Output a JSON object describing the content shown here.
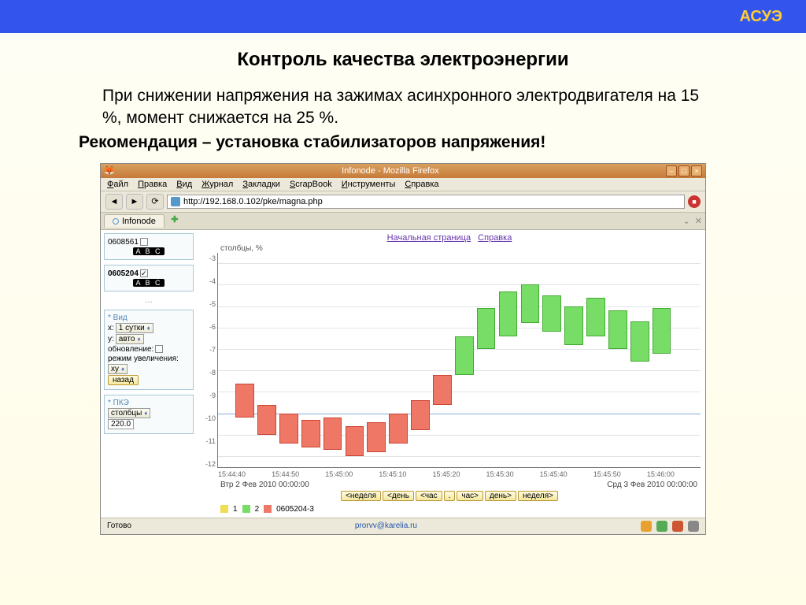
{
  "header": {
    "brand": "АСУЭ"
  },
  "page": {
    "title": "Контроль качества электроэнергии",
    "paragraph": "При снижении напряжения на зажимах асинхронного электродвигателя на 15 %, момент снижается на 25 %.",
    "recommendation": "Рекомендация – установка стабилизаторов напряжения!"
  },
  "browser": {
    "window_title": "Infonode - Mozilla Firefox",
    "menu": [
      "Файл",
      "Правка",
      "Вид",
      "Журнал",
      "Закладки",
      "ScrapBook",
      "Инструменты",
      "Справка"
    ],
    "url": "http://192.168.0.102/pke/magna.php",
    "tab_label": "Infonode",
    "top_links": [
      "Начальная страница",
      "Справка"
    ],
    "status": "Готово",
    "email": "prorvv@karelia.ru"
  },
  "sidebar": {
    "sensors": [
      {
        "id": "0608561",
        "checked": false
      },
      {
        "id": "0605204",
        "checked": true
      }
    ],
    "abc_label": "A B C",
    "view": {
      "title": "* Вид",
      "x_label": "x:",
      "x_value": "1 сутки",
      "y_label": "y:",
      "y_value": "авто",
      "update_label": "обновление:",
      "zoom_label": "режим увеличения:",
      "zoom_value": "xy",
      "back_label": "назад"
    },
    "pke": {
      "title": "* ПКЭ",
      "mode": "столбцы",
      "value": "220.0"
    }
  },
  "chart": {
    "y_title": "столбцы, %",
    "ylim": [
      -12.5,
      -2.5
    ],
    "ytick_step": 1,
    "y_ticks": [
      "-3",
      "-4",
      "-5",
      "-6",
      "-7",
      "-8",
      "-9",
      "-10",
      "-11",
      "-12"
    ],
    "threshold": -10,
    "grid_color": "#e0e4e8",
    "threshold_color": "#88aadd",
    "colors": {
      "red": "#ee7766",
      "green": "#77dd66",
      "yellow": "#eedd55"
    },
    "bars": [
      {
        "top": -8.6,
        "bot": -10.2,
        "c": "red"
      },
      {
        "top": -9.6,
        "bot": -11.0,
        "c": "red"
      },
      {
        "top": -10.0,
        "bot": -11.4,
        "c": "red"
      },
      {
        "top": -10.3,
        "bot": -11.6,
        "c": "red"
      },
      {
        "top": -10.2,
        "bot": -11.7,
        "c": "red"
      },
      {
        "top": -10.6,
        "bot": -12.0,
        "c": "red"
      },
      {
        "top": -10.4,
        "bot": -11.8,
        "c": "red"
      },
      {
        "top": -10.0,
        "bot": -11.4,
        "c": "red"
      },
      {
        "top": -9.4,
        "bot": -10.8,
        "c": "red"
      },
      {
        "top": -8.2,
        "bot": -9.6,
        "c": "red"
      },
      {
        "top": -6.4,
        "bot": -8.2,
        "c": "grn"
      },
      {
        "top": -5.1,
        "bot": -7.0,
        "c": "grn"
      },
      {
        "top": -4.3,
        "bot": -6.4,
        "c": "grn"
      },
      {
        "top": -4.0,
        "bot": -5.8,
        "c": "grn"
      },
      {
        "top": -4.5,
        "bot": -6.2,
        "c": "grn"
      },
      {
        "top": -5.0,
        "bot": -6.8,
        "c": "grn"
      },
      {
        "top": -4.6,
        "bot": -6.4,
        "c": "grn"
      },
      {
        "top": -5.2,
        "bot": -7.0,
        "c": "grn"
      },
      {
        "top": -5.7,
        "bot": -7.6,
        "c": "grn"
      },
      {
        "top": -5.1,
        "bot": -7.2,
        "c": "grn"
      }
    ],
    "x_ticks": [
      "15:44:40",
      "15:44:50",
      "15:45:00",
      "15:45:10",
      "15:45:20",
      "15:45:30",
      "15:45:40",
      "15:45:50",
      "15:46:00"
    ],
    "date_left": "Втр  2  Фев 2010 00:00:00",
    "date_right": "Срд  3  Фев 2010 00:00:00",
    "nav_buttons": [
      "<неделя",
      "<день",
      "<час",
      ".",
      "час>",
      "день>",
      "неделя>"
    ],
    "legend": [
      {
        "label": "1",
        "color": "#eedd55"
      },
      {
        "label": "2",
        "color": "#77dd66"
      },
      {
        "label": "0605204-3",
        "color": "#ee7766"
      }
    ]
  }
}
